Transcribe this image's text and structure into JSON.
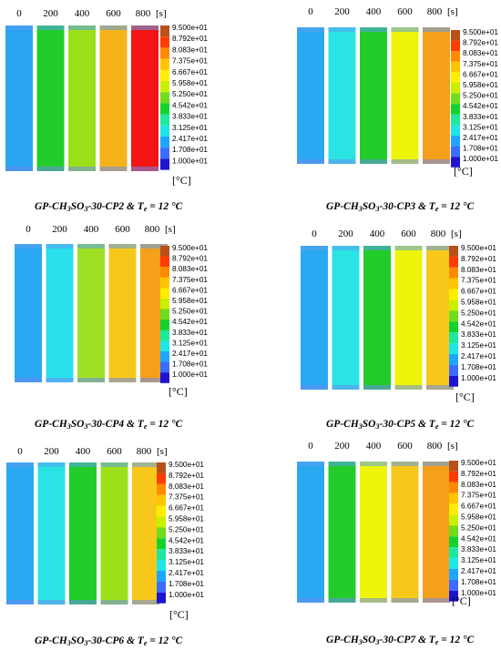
{
  "times": [
    "0",
    "200",
    "400",
    "600",
    "800"
  ],
  "time_unit": "[s]",
  "unit_label": "[°C]",
  "legend_values": [
    "9.500e+01",
    "8.792e+01",
    "8.083e+01",
    "7.375e+01",
    "6.667e+01",
    "5.958e+01",
    "5.250e+01",
    "4.542e+01",
    "3.833e+01",
    "3.125e+01",
    "2.417e+01",
    "1.708e+01",
    "1.000e+01"
  ],
  "legend_colors": [
    "#b8501a",
    "#ff3c00",
    "#ff8a00",
    "#ffc400",
    "#ffee00",
    "#c8f000",
    "#6fdc1c",
    "#14d22d",
    "#1ee8a0",
    "#1ee6e6",
    "#1ea6ff",
    "#3a6cff",
    "#1e14d0"
  ],
  "panels": [
    {
      "id": "CP2",
      "caption_prefix": "GP-CH",
      "caption_sub1": "3",
      "caption_mid": "SO",
      "caption_sub2": "3",
      "caption_suffix": "-30-CP2 & T",
      "caption_sub3": "e",
      "caption_end": " = 12 °C",
      "bar_colors": [
        "#2aa3f0",
        "#22cc2a",
        "#9ce01a",
        "#f6b21a",
        "#f31414"
      ]
    },
    {
      "id": "CP3",
      "caption_prefix": "GP-CH",
      "caption_sub1": "3",
      "caption_mid": "SO",
      "caption_sub2": "3",
      "caption_suffix": "-30-CP3 & T",
      "caption_sub3": "e",
      "caption_end": " = 12 °C",
      "bar_colors": [
        "#2aa8f2",
        "#2ae4e4",
        "#22cc2a",
        "#eef50a",
        "#f5a01a"
      ]
    },
    {
      "id": "CP4",
      "caption_prefix": "GP-CH",
      "caption_sub1": "3",
      "caption_mid": "SO",
      "caption_sub2": "3",
      "caption_suffix": "-30-CP4 & T",
      "caption_sub3": "e",
      "caption_end": " = 12 °C",
      "bar_colors": [
        "#2aa8f2",
        "#2ae0ec",
        "#a0e024",
        "#f7c81a",
        "#f5a01a"
      ]
    },
    {
      "id": "CP5",
      "caption_prefix": "GP-CH",
      "caption_sub1": "3",
      "caption_mid": "SO",
      "caption_sub2": "3",
      "caption_suffix": "-30-CP5 & T",
      "caption_sub3": "e",
      "caption_end": " = 12 °C",
      "bar_colors": [
        "#2aa8f2",
        "#2ae4e4",
        "#22cc2a",
        "#eef50a",
        "#f7c81a"
      ]
    },
    {
      "id": "CP6",
      "caption_prefix": "GP-CH",
      "caption_sub1": "3",
      "caption_mid": "SO",
      "caption_sub2": "3",
      "caption_suffix": "-30-CP6 & T",
      "caption_sub3": "e",
      "caption_end": " = 12 °C",
      "bar_colors": [
        "#2aa8f2",
        "#2ae4e4",
        "#22cc2a",
        "#9ce01a",
        "#f7c81a"
      ]
    },
    {
      "id": "CP7",
      "caption_prefix": "GP-CH",
      "caption_sub1": "3",
      "caption_mid": "SO",
      "caption_sub2": "3",
      "caption_suffix": "-30-CP7 & T",
      "caption_sub3": "e",
      "caption_end": " = 12 °C",
      "bar_colors": [
        "#2aa8f2",
        "#22cc2a",
        "#eef50a",
        "#f7c81a",
        "#f5a01a"
      ]
    }
  ]
}
